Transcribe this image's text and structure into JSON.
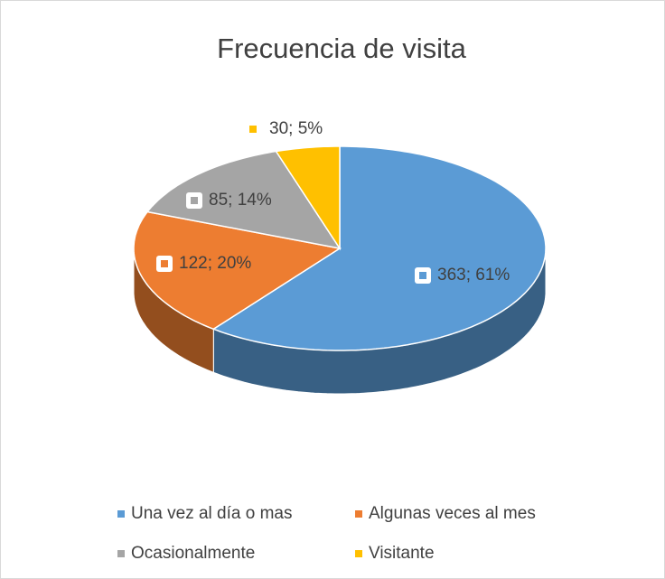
{
  "chart_data": {
    "type": "pie3d",
    "title": "Frecuencia de visita",
    "categories": [
      "Una vez al día o mas",
      "Algunas veces al mes",
      "Ocasionalmente",
      "Visitante"
    ],
    "values": [
      363,
      122,
      85,
      30
    ],
    "value_labels": [
      "363; 61%",
      "122; 20%",
      "85; 14%",
      "30; 5%"
    ],
    "colors": [
      "#5b9bd5",
      "#ed7d31",
      "#a5a5a5",
      "#ffc000"
    ],
    "legend": "bottom"
  }
}
